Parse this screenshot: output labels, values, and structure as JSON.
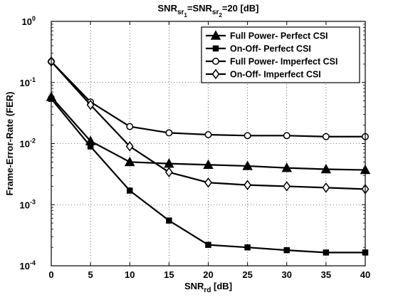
{
  "chart_data": {
    "type": "line",
    "title": {
      "parts": [
        {
          "text": "SNR"
        },
        {
          "text": "sr",
          "sub": true
        },
        {
          "text": "1",
          "subsub": true
        },
        {
          "text": "=SNR"
        },
        {
          "text": "sr",
          "sub": true
        },
        {
          "text": "2",
          "subsub": true
        },
        {
          "text": "=20 [dB]"
        }
      ]
    },
    "xlabel": {
      "main": "SNR",
      "sub": "rd",
      "rest": " [dB]"
    },
    "ylabel": "Frame-Error-Rate (FER)",
    "x_scale": "linear",
    "y_scale": "log",
    "xlim": [
      0,
      40
    ],
    "ylim": [
      0.0001,
      1
    ],
    "x_ticks": [
      "0",
      "5",
      "10",
      "15",
      "20",
      "25",
      "30",
      "35",
      "40"
    ],
    "y_ticks": [
      {
        "base": "10",
        "exp": "0",
        "value": 1
      },
      {
        "base": "10",
        "exp": "-1",
        "value": 0.1
      },
      {
        "base": "10",
        "exp": "-2",
        "value": 0.01
      },
      {
        "base": "10",
        "exp": "-3",
        "value": 0.001
      },
      {
        "base": "10",
        "exp": "-4",
        "value": 0.0001
      }
    ],
    "grid": true,
    "legend_position": "top-right",
    "line_color": "#000000",
    "x": [
      0,
      5,
      10,
      15,
      20,
      25,
      30,
      35,
      40
    ],
    "series": [
      {
        "name": "Full Power- Perfect CSI",
        "marker": "triangle",
        "values": [
          0.058,
          0.011,
          0.005,
          0.0047,
          0.0045,
          0.0043,
          0.004,
          0.0038,
          0.0037
        ]
      },
      {
        "name": "On-Off- Perfect CSI",
        "marker": "square",
        "values": [
          0.054,
          0.009,
          0.0017,
          0.00055,
          0.00022,
          0.0002,
          0.00018,
          0.000165,
          0.000165
        ]
      },
      {
        "name": "Full Power- Imperfect CSI",
        "marker": "circle",
        "values": [
          0.22,
          0.048,
          0.019,
          0.015,
          0.014,
          0.0135,
          0.0135,
          0.013,
          0.013
        ]
      },
      {
        "name": "On-Off- Imperfect CSI",
        "marker": "diamond",
        "values": [
          0.22,
          0.043,
          0.009,
          0.0034,
          0.0023,
          0.0021,
          0.002,
          0.0019,
          0.0018
        ]
      }
    ]
  }
}
